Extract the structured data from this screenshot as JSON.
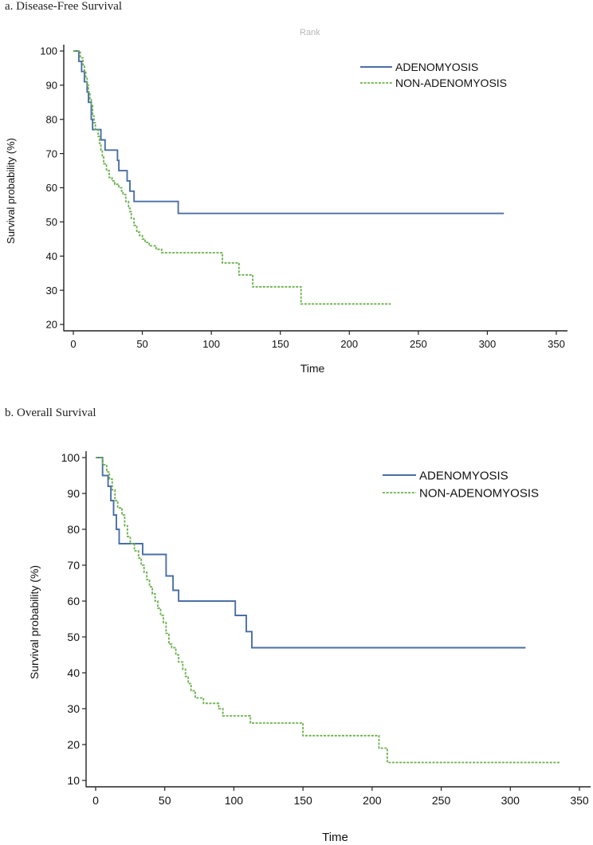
{
  "chart_data": [
    {
      "type": "line",
      "title": "a. Disease-Free Survival",
      "xlabel": "Time",
      "ylabel": "Survival probability (%)",
      "xlim": [
        0,
        350
      ],
      "ylim": [
        20,
        100
      ],
      "xticks": [
        0,
        50,
        100,
        150,
        200,
        250,
        300,
        350
      ],
      "yticks": [
        20,
        30,
        40,
        50,
        60,
        70,
        80,
        90,
        100
      ],
      "legend_position": "top-right",
      "series": [
        {
          "name": "ADENOMYOSIS",
          "color": "#4a6fa5",
          "style": "solid",
          "steps": [
            [
              0,
              100
            ],
            [
              4,
              100
            ],
            [
              4,
              97
            ],
            [
              6,
              97
            ],
            [
              6,
              94
            ],
            [
              8,
              94
            ],
            [
              8,
              91
            ],
            [
              10,
              91
            ],
            [
              10,
              88
            ],
            [
              11,
              88
            ],
            [
              11,
              85
            ],
            [
              13,
              85
            ],
            [
              13,
              80
            ],
            [
              14,
              80
            ],
            [
              14,
              77
            ],
            [
              20,
              77
            ],
            [
              20,
              74
            ],
            [
              23,
              74
            ],
            [
              23,
              71
            ],
            [
              32,
              71
            ],
            [
              32,
              68
            ],
            [
              33,
              68
            ],
            [
              33,
              65
            ],
            [
              39,
              65
            ],
            [
              39,
              62
            ],
            [
              41,
              62
            ],
            [
              41,
              59
            ],
            [
              44,
              59
            ],
            [
              44,
              56
            ],
            [
              76,
              56
            ],
            [
              76,
              52.5
            ],
            [
              312,
              52.5
            ]
          ]
        },
        {
          "name": "NON-ADENOMYOSIS",
          "color": "#6ab04c",
          "style": "dashed",
          "steps": [
            [
              0,
              100
            ],
            [
              5,
              100
            ],
            [
              5,
              98
            ],
            [
              7,
              98
            ],
            [
              7,
              96
            ],
            [
              8,
              96
            ],
            [
              8,
              94
            ],
            [
              9,
              94
            ],
            [
              9,
              92
            ],
            [
              10,
              92
            ],
            [
              10,
              90
            ],
            [
              11,
              90
            ],
            [
              11,
              88
            ],
            [
              12,
              88
            ],
            [
              12,
              86
            ],
            [
              13,
              86
            ],
            [
              13,
              84
            ],
            [
              14,
              84
            ],
            [
              14,
              81
            ],
            [
              15,
              81
            ],
            [
              15,
              79
            ],
            [
              16,
              79
            ],
            [
              16,
              77
            ],
            [
              18,
              77
            ],
            [
              18,
              75
            ],
            [
              19,
              75
            ],
            [
              19,
              73
            ],
            [
              20,
              73
            ],
            [
              20,
              71
            ],
            [
              21,
              71
            ],
            [
              21,
              69
            ],
            [
              22,
              69
            ],
            [
              22,
              67
            ],
            [
              24,
              67
            ],
            [
              24,
              65
            ],
            [
              26,
              65
            ],
            [
              26,
              63
            ],
            [
              28,
              63
            ],
            [
              28,
              62
            ],
            [
              30,
              62
            ],
            [
              30,
              61
            ],
            [
              33,
              61
            ],
            [
              33,
              60
            ],
            [
              35,
              60
            ],
            [
              35,
              59
            ],
            [
              36,
              59
            ],
            [
              36,
              58
            ],
            [
              38,
              58
            ],
            [
              38,
              56
            ],
            [
              40,
              56
            ],
            [
              40,
              54
            ],
            [
              41,
              54
            ],
            [
              41,
              53
            ],
            [
              42,
              53
            ],
            [
              42,
              51
            ],
            [
              44,
              51
            ],
            [
              44,
              49
            ],
            [
              46,
              49
            ],
            [
              46,
              47
            ],
            [
              48,
              47
            ],
            [
              48,
              46
            ],
            [
              50,
              46
            ],
            [
              50,
              45
            ],
            [
              52,
              45
            ],
            [
              52,
              44
            ],
            [
              55,
              44
            ],
            [
              55,
              43
            ],
            [
              60,
              43
            ],
            [
              60,
              42
            ],
            [
              64,
              42
            ],
            [
              64,
              41
            ],
            [
              68,
              41
            ],
            [
              68,
              41
            ],
            [
              108,
              41
            ],
            [
              108,
              38
            ],
            [
              120,
              38
            ],
            [
              120,
              34.5
            ],
            [
              130,
              34.5
            ],
            [
              130,
              31
            ],
            [
              165,
              31
            ],
            [
              165,
              26
            ],
            [
              230,
              26
            ]
          ]
        }
      ]
    },
    {
      "type": "line",
      "title": "b. Overall Survival",
      "xlabel": "Time",
      "ylabel": "Survival probability (%)",
      "xlim": [
        0,
        350
      ],
      "ylim": [
        10,
        100
      ],
      "xticks": [
        0,
        50,
        100,
        150,
        200,
        250,
        300,
        350
      ],
      "yticks": [
        10,
        20,
        30,
        40,
        50,
        60,
        70,
        80,
        90,
        100
      ],
      "legend_position": "top-right",
      "series": [
        {
          "name": "ADENOMYOSIS",
          "color": "#4a6fa5",
          "style": "solid",
          "steps": [
            [
              0,
              100
            ],
            [
              5,
              100
            ],
            [
              5,
              95
            ],
            [
              9,
              95
            ],
            [
              9,
              92
            ],
            [
              11,
              92
            ],
            [
              11,
              88
            ],
            [
              13,
              88
            ],
            [
              13,
              84
            ],
            [
              15,
              84
            ],
            [
              15,
              80
            ],
            [
              17,
              80
            ],
            [
              17,
              76
            ],
            [
              34,
              76
            ],
            [
              34,
              73
            ],
            [
              51,
              73
            ],
            [
              51,
              67
            ],
            [
              56,
              67
            ],
            [
              56,
              63
            ],
            [
              60,
              63
            ],
            [
              60,
              60
            ],
            [
              101,
              60
            ],
            [
              101,
              56
            ],
            [
              109,
              56
            ],
            [
              109,
              51.5
            ],
            [
              113,
              51.5
            ],
            [
              113,
              47
            ],
            [
              311,
              47
            ]
          ]
        },
        {
          "name": "NON-ADENOMYOSIS",
          "color": "#6ab04c",
          "style": "dashed",
          "steps": [
            [
              0,
              100
            ],
            [
              5,
              100
            ],
            [
              5,
              98
            ],
            [
              8,
              98
            ],
            [
              8,
              96
            ],
            [
              10,
              96
            ],
            [
              10,
              94
            ],
            [
              12,
              94
            ],
            [
              12,
              91
            ],
            [
              14,
              91
            ],
            [
              14,
              88
            ],
            [
              16,
              88
            ],
            [
              16,
              86
            ],
            [
              19,
              86
            ],
            [
              19,
              84
            ],
            [
              21,
              84
            ],
            [
              21,
              81
            ],
            [
              23,
              81
            ],
            [
              23,
              78
            ],
            [
              25,
              78
            ],
            [
              25,
              76
            ],
            [
              28,
              76
            ],
            [
              28,
              74
            ],
            [
              31,
              74
            ],
            [
              31,
              72
            ],
            [
              33,
              72
            ],
            [
              33,
              70
            ],
            [
              35,
              70
            ],
            [
              35,
              68
            ],
            [
              37,
              68
            ],
            [
              37,
              66
            ],
            [
              39,
              66
            ],
            [
              39,
              64
            ],
            [
              41,
              64
            ],
            [
              41,
              62
            ],
            [
              43,
              62
            ],
            [
              43,
              60
            ],
            [
              45,
              60
            ],
            [
              45,
              58
            ],
            [
              47,
              58
            ],
            [
              47,
              56
            ],
            [
              49,
              56
            ],
            [
              49,
              54
            ],
            [
              51,
              54
            ],
            [
              51,
              51
            ],
            [
              53,
              51
            ],
            [
              53,
              48
            ],
            [
              55,
              48
            ],
            [
              55,
              47
            ],
            [
              58,
              47
            ],
            [
              58,
              45
            ],
            [
              60,
              45
            ],
            [
              60,
              43
            ],
            [
              63,
              43
            ],
            [
              63,
              41
            ],
            [
              65,
              41
            ],
            [
              65,
              39
            ],
            [
              67,
              39
            ],
            [
              67,
              37
            ],
            [
              69,
              37
            ],
            [
              69,
              35
            ],
            [
              72,
              35
            ],
            [
              72,
              33
            ],
            [
              78,
              33
            ],
            [
              78,
              31.5
            ],
            [
              89,
              31.5
            ],
            [
              89,
              30
            ],
            [
              92,
              30
            ],
            [
              92,
              28
            ],
            [
              112,
              28
            ],
            [
              112,
              26
            ],
            [
              150,
              26
            ],
            [
              150,
              22.5
            ],
            [
              205,
              22.5
            ],
            [
              205,
              19
            ],
            [
              211,
              19
            ],
            [
              211,
              15
            ],
            [
              336,
              15
            ]
          ]
        }
      ]
    }
  ],
  "header_fragment": "Rank"
}
